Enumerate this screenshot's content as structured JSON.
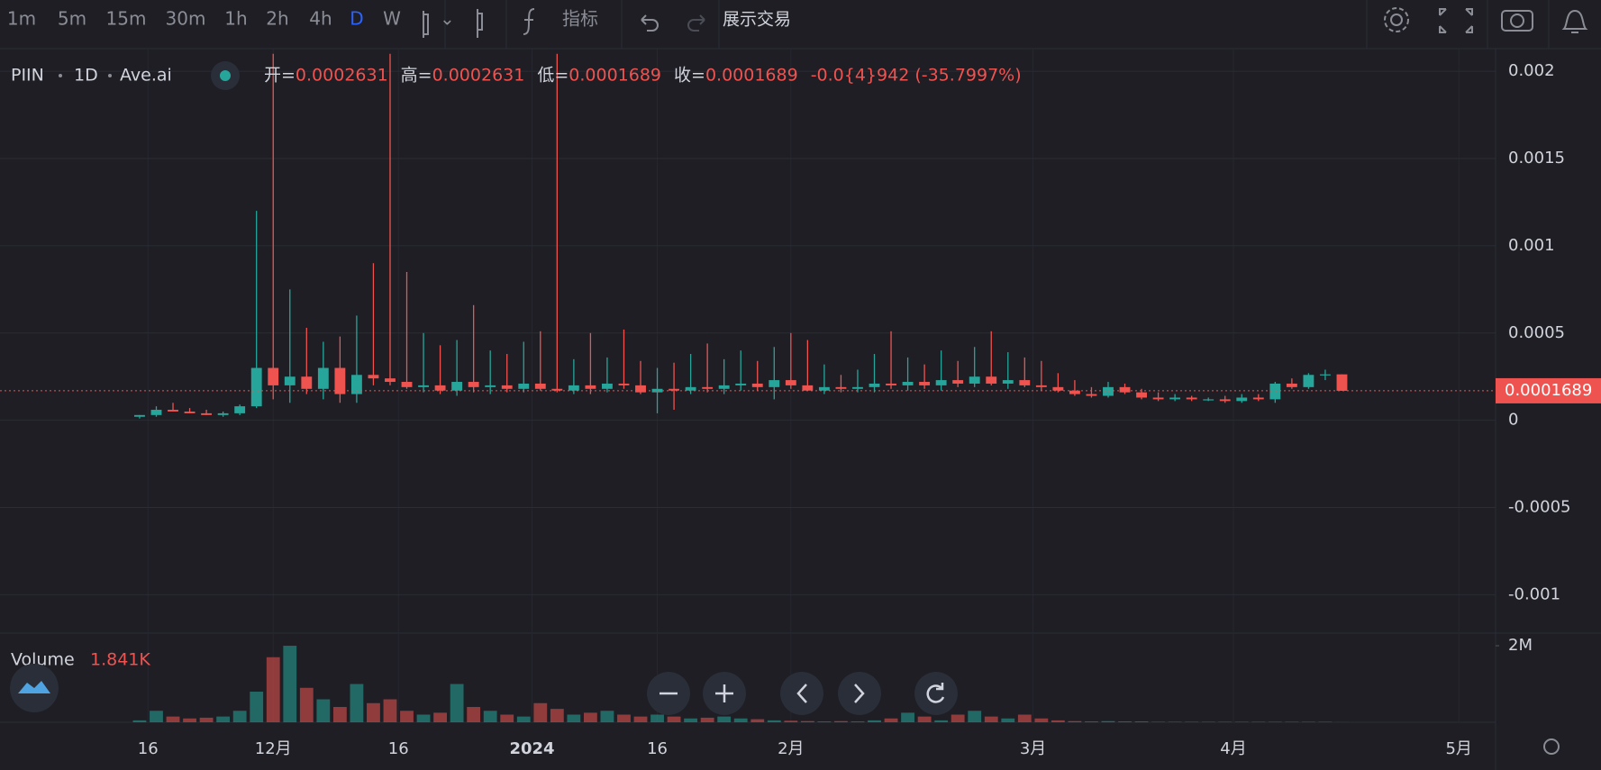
{
  "toolbar": {
    "intervals": [
      "1m",
      "5m",
      "15m",
      "30m",
      "1h",
      "2h",
      "4h",
      "D",
      "W"
    ],
    "active": "D",
    "indicators": "指标",
    "trade": "展示交易"
  },
  "chart_data": {
    "type": "candlestick",
    "legend": {
      "symbol": "PIIN",
      "interval": "1D",
      "source": "Ave.ai",
      "fields": [
        {
          "label": "开=",
          "value": "0.0002631"
        },
        {
          "label": "高=",
          "value": "0.0002631"
        },
        {
          "label": "低=",
          "value": "0.0001689"
        },
        {
          "label": "收=",
          "value": "0.0001689"
        }
      ],
      "change": "-0.0{4}942 (-35.7997%)"
    },
    "up_color": "#26a69a",
    "down_color": "#ef5350",
    "grid": true,
    "xlim": [
      -8.36,
      81.2
    ],
    "xticks": [
      {
        "value": 0.5,
        "label": "16"
      },
      {
        "value": 8,
        "label": "12月"
      },
      {
        "value": 15.5,
        "label": "16"
      },
      {
        "value": 23.5,
        "label": "2024"
      },
      {
        "value": 31,
        "label": "16"
      },
      {
        "value": 39,
        "label": "2月"
      },
      {
        "value": 53.5,
        "label": "3月"
      },
      {
        "value": 65.5,
        "label": "4月"
      },
      {
        "value": 79,
        "label": "5月"
      }
    ],
    "ylim": [
      -0.00122,
      0.00213
    ],
    "yticks": [
      0.002,
      0.0015,
      0.001,
      0.0005,
      0,
      -0.0005,
      -0.001
    ],
    "last_price": {
      "value": 0.0001689,
      "label": "0.0001689"
    },
    "open": [
      2e-05,
      3e-05,
      6e-05,
      5e-05,
      4e-05,
      3e-05,
      4e-05,
      8e-05,
      0.0003,
      0.0002,
      0.00025,
      0.00018,
      0.0003,
      0.00015,
      0.00026,
      0.00024,
      0.00022,
      0.00019,
      0.0002,
      0.00017,
      0.00022,
      0.00019,
      0.0002,
      0.00018,
      0.00021,
      0.00018,
      0.00017,
      0.0002,
      0.00018,
      0.00021,
      0.0002,
      0.00016,
      0.00018,
      0.00017,
      0.00019,
      0.00018,
      0.0002,
      0.00021,
      0.00019,
      0.00023,
      0.0002,
      0.00017,
      0.00019,
      0.00018,
      0.00019,
      0.00021,
      0.0002,
      0.00022,
      0.0002,
      0.00023,
      0.00021,
      0.00025,
      0.00021,
      0.00023,
      0.0002,
      0.00019,
      0.00017,
      0.00015,
      0.00014,
      0.00019,
      0.00016,
      0.00013,
      0.00012,
      0.00013,
      0.00012,
      0.00012,
      0.00011,
      0.00013,
      0.00012,
      0.00021,
      0.00019,
      0.00026,
      0.0002631
    ],
    "high": [
      3e-05,
      8e-05,
      0.0001,
      7e-05,
      6e-05,
      5e-05,
      9e-05,
      0.0012,
      0.0021,
      0.00075,
      0.00053,
      0.00045,
      0.00048,
      0.0006,
      0.0009,
      0.0021,
      0.00085,
      0.0005,
      0.00043,
      0.00046,
      0.00066,
      0.0004,
      0.00038,
      0.00045,
      0.00051,
      0.0021,
      0.00035,
      0.0005,
      0.00036,
      0.00052,
      0.00034,
      0.0003,
      0.00033,
      0.00038,
      0.00044,
      0.00035,
      0.0004,
      0.00034,
      0.00042,
      0.0005,
      0.00046,
      0.00032,
      0.00026,
      0.00029,
      0.00038,
      0.00051,
      0.00036,
      0.00032,
      0.0004,
      0.00034,
      0.00042,
      0.00051,
      0.00039,
      0.00036,
      0.00034,
      0.00027,
      0.00023,
      0.00019,
      0.00022,
      0.00021,
      0.00018,
      0.00016,
      0.00015,
      0.00014,
      0.00013,
      0.00014,
      0.00015,
      0.00015,
      0.00022,
      0.00024,
      0.00027,
      0.00029,
      0.0002631
    ],
    "low": [
      1e-05,
      2e-05,
      5e-05,
      4e-05,
      3e-05,
      2e-05,
      3e-05,
      7e-05,
      0.00012,
      0.0001,
      0.00015,
      0.00012,
      0.0001,
      0.0001,
      0.0002,
      0.0002,
      0.00018,
      0.00016,
      0.00015,
      0.00014,
      0.00016,
      0.00015,
      0.00016,
      0.00016,
      0.00017,
      0.00016,
      0.00015,
      0.00015,
      0.00016,
      0.00018,
      0.00015,
      4e-05,
      6e-05,
      0.00015,
      0.00016,
      0.00015,
      0.00017,
      0.00017,
      0.00012,
      0.00018,
      0.00018,
      0.00015,
      0.00016,
      0.00016,
      0.00016,
      0.00018,
      0.00017,
      0.00018,
      0.00017,
      0.00019,
      0.00019,
      0.0002,
      0.00018,
      0.00019,
      0.00017,
      0.00016,
      0.00014,
      0.00013,
      0.00013,
      0.00015,
      0.00012,
      0.00011,
      0.00011,
      0.00011,
      0.00011,
      0.0001,
      0.0001,
      0.00011,
      0.0001,
      0.00018,
      0.00018,
      0.00023,
      0.0001689
    ],
    "close": [
      3e-05,
      6e-05,
      5e-05,
      4e-05,
      3e-05,
      4e-05,
      8e-05,
      0.0003,
      0.0002,
      0.00025,
      0.00018,
      0.0003,
      0.00015,
      0.00026,
      0.00024,
      0.00022,
      0.00019,
      0.0002,
      0.00017,
      0.00022,
      0.00019,
      0.0002,
      0.00018,
      0.00021,
      0.00018,
      0.00017,
      0.0002,
      0.00018,
      0.00021,
      0.0002,
      0.00016,
      0.00018,
      0.00017,
      0.00019,
      0.00018,
      0.0002,
      0.00021,
      0.00019,
      0.00023,
      0.0002,
      0.00017,
      0.00019,
      0.00018,
      0.00019,
      0.00021,
      0.0002,
      0.00022,
      0.0002,
      0.00023,
      0.00021,
      0.00025,
      0.00021,
      0.00023,
      0.0002,
      0.00019,
      0.00017,
      0.00015,
      0.00014,
      0.00019,
      0.00016,
      0.00013,
      0.00012,
      0.00013,
      0.00012,
      0.00012,
      0.00011,
      0.00013,
      0.00012,
      0.00021,
      0.00019,
      0.00026,
      0.0002631,
      0.0001689
    ],
    "volume": {
      "title": "Volume",
      "value_label": "1.841K",
      "ylim": [
        0,
        2330000
      ],
      "yticks": [
        {
          "value": 2000000,
          "label": "2M"
        }
      ],
      "values": [
        50000,
        300000,
        150000,
        100000,
        120000,
        150000,
        300000,
        800000,
        1700000,
        2000000,
        900000,
        600000,
        400000,
        1000000,
        500000,
        600000,
        300000,
        200000,
        250000,
        1000000,
        400000,
        300000,
        200000,
        150000,
        500000,
        350000,
        200000,
        250000,
        300000,
        200000,
        150000,
        200000,
        150000,
        100000,
        120000,
        150000,
        100000,
        80000,
        50000,
        40000,
        30000,
        20000,
        30000,
        20000,
        50000,
        100000,
        250000,
        150000,
        50000,
        200000,
        300000,
        150000,
        100000,
        200000,
        100000,
        50000,
        30000,
        20000,
        30000,
        20000,
        20000,
        10000,
        10000,
        10000,
        10000,
        10000,
        10000,
        10000,
        10000,
        10000,
        10000,
        10000,
        1841
      ]
    }
  }
}
